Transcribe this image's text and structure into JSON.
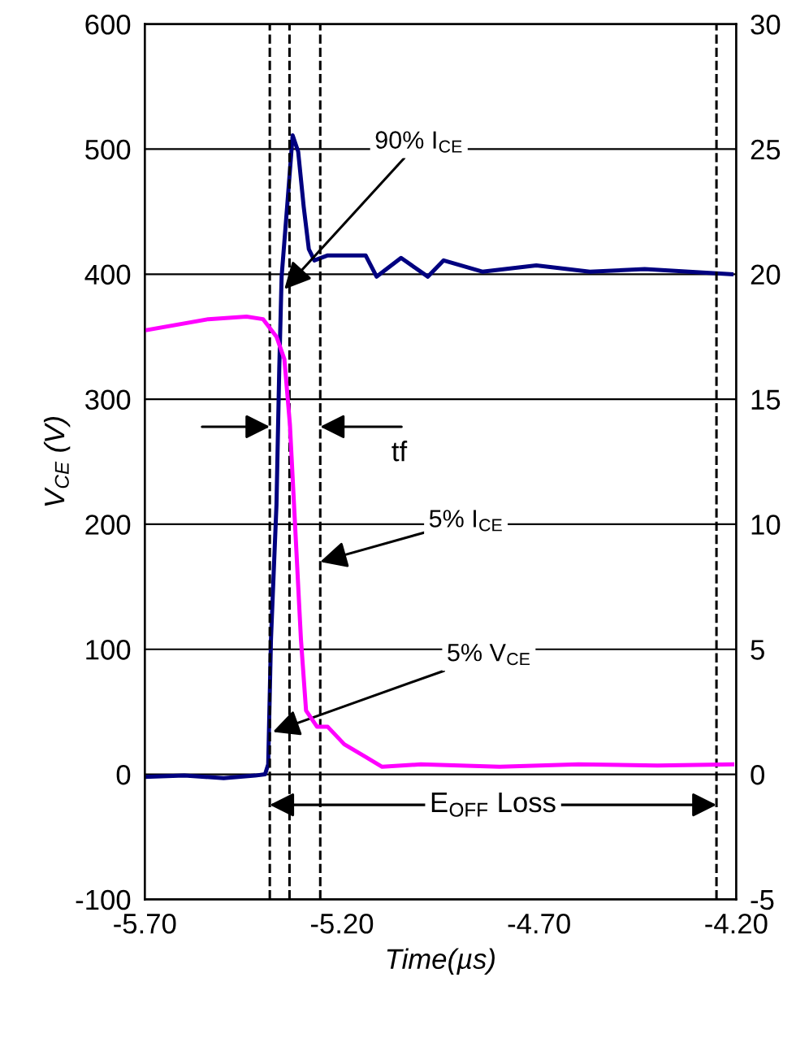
{
  "chart_data": {
    "type": "line",
    "xlabel": "Time(µs)",
    "ylabel": "V$_{CE}$ (V)",
    "xlim": [
      -5.7,
      -4.2
    ],
    "xticks": [
      {
        "value": -5.7,
        "label": "-5.70"
      },
      {
        "value": -5.2,
        "label": "-5.20"
      },
      {
        "value": -4.7,
        "label": "-4.70"
      },
      {
        "value": -4.2,
        "label": "-4.20"
      }
    ],
    "ylim": [
      -100,
      600
    ],
    "yticks": [
      -100,
      0,
      100,
      200,
      300,
      400,
      500,
      600
    ],
    "y2lim": [
      -5,
      30
    ],
    "y2ticks": [
      -5,
      0,
      5,
      10,
      15,
      20,
      25,
      30
    ],
    "grid": "y",
    "marker": "none",
    "line_style": "solid",
    "series": [
      {
        "color": "#000080",
        "x": [
          -5.7,
          -5.6,
          -5.5,
          -5.42,
          -5.395,
          -5.387,
          -5.38,
          -5.366,
          -5.359,
          -5.353,
          -5.339,
          -5.325,
          -5.311,
          -5.297,
          -5.284,
          -5.27,
          -5.236,
          -5.14,
          -5.112,
          -5.05,
          -4.982,
          -4.942,
          -4.844,
          -4.707,
          -4.571,
          -4.432,
          -4.212
        ],
        "values": [
          -2,
          -1,
          -3,
          -1,
          0,
          8,
          108,
          216,
          324,
          398,
          454,
          511,
          498,
          454,
          420,
          411,
          415,
          415,
          398,
          413,
          398,
          411,
          402,
          407,
          402,
          404,
          400
        ]
      },
      {
        "color": "#ff00ff",
        "axis": "y2",
        "x": [
          -5.7,
          -5.539,
          -5.442,
          -5.4,
          -5.366,
          -5.346,
          -5.332,
          -5.318,
          -5.304,
          -5.291,
          -5.263,
          -5.236,
          -5.194,
          -5.14,
          -5.098,
          -5.0,
          -4.8,
          -4.6,
          -4.4,
          -4.21
        ],
        "values": [
          17.75,
          18.2,
          18.3,
          18.2,
          17.5,
          16.6,
          14.0,
          9.7,
          5.4,
          2.55,
          1.9,
          1.9,
          1.2,
          0.7,
          0.3,
          0.4,
          0.3,
          0.4,
          0.35,
          0.4
        ]
      }
    ],
    "ref_lines": [
      {
        "axis": "x",
        "value": -5.383,
        "color": "#000000",
        "line_style": "dashed"
      },
      {
        "axis": "x",
        "value": -5.333,
        "color": "#000000",
        "line_style": "dashed"
      },
      {
        "axis": "x",
        "value": -5.255,
        "color": "#000000",
        "line_style": "dashed"
      },
      {
        "axis": "x",
        "value": -4.25,
        "color": "#000000",
        "line_style": "dashed"
      }
    ],
    "annotations": [
      {
        "text": "90% I$_{CE}$",
        "x": -5.346,
        "y": 388
      },
      {
        "text": "tf",
        "x": -5.255,
        "y": 278
      },
      {
        "text": "5% I$_{CE}$",
        "x": -5.255,
        "y": 170
      },
      {
        "text": "5% V$_{CE}$",
        "x": -5.375,
        "y": 34
      },
      "E$_{OFF}$ Loss"
    ]
  }
}
